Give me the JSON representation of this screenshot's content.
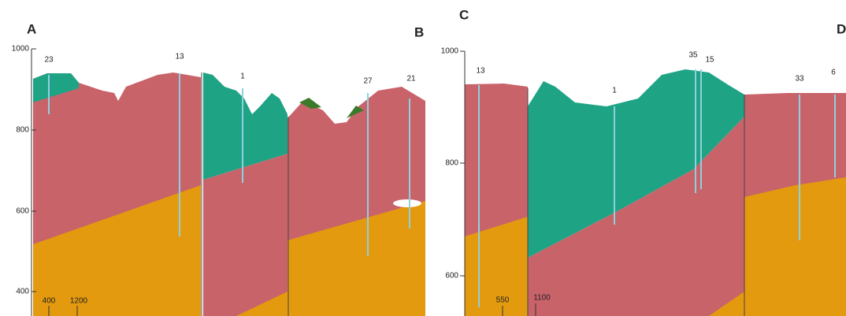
{
  "panels": [
    {
      "labels": [
        "A",
        "B"
      ],
      "yticks": [
        1000,
        800,
        600,
        400
      ],
      "wells": [
        "23",
        "13",
        "1",
        "27",
        "21"
      ],
      "distances": [
        "400",
        "1200"
      ]
    },
    {
      "labels": [
        "C",
        "D"
      ],
      "yticks": [
        1000,
        800,
        600
      ],
      "wells": [
        "13",
        "1",
        "35",
        "15",
        "33",
        "6"
      ],
      "distances": [
        "550",
        "1100"
      ]
    }
  ]
}
